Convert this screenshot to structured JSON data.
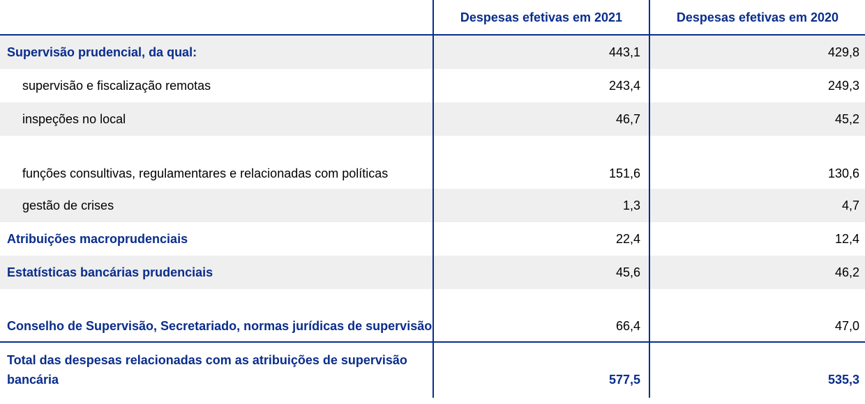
{
  "table": {
    "header": [
      "Despesas efetivas em 2021",
      "Despesas efetivas em 2020"
    ],
    "rows": [
      [
        "Supervisão prudencial, da qual:",
        "443,1",
        "429,8"
      ],
      [
        "supervisão e fiscalização remotas",
        "243,4",
        "249,3"
      ],
      [
        "inspeções no local",
        "46,7",
        "45,2"
      ],
      [
        "funções consultivas, regulamentares e relacionadas com políticas",
        "151,6",
        "130,6"
      ],
      [
        "gestão de crises",
        "1,3",
        "4,7"
      ],
      [
        "Atribuições macroprudenciais",
        "22,4",
        "12,4"
      ],
      [
        "Estatísticas bancárias prudenciais",
        "45,6",
        "46,2"
      ],
      [
        "Conselho de Supervisão, Secretariado, normas jurídicas de supervisão",
        "66,4",
        "47,0"
      ]
    ],
    "total": [
      "Total das despesas relacionadas com as atribuições de supervisão bancária",
      "577,5",
      "535,3"
    ]
  }
}
